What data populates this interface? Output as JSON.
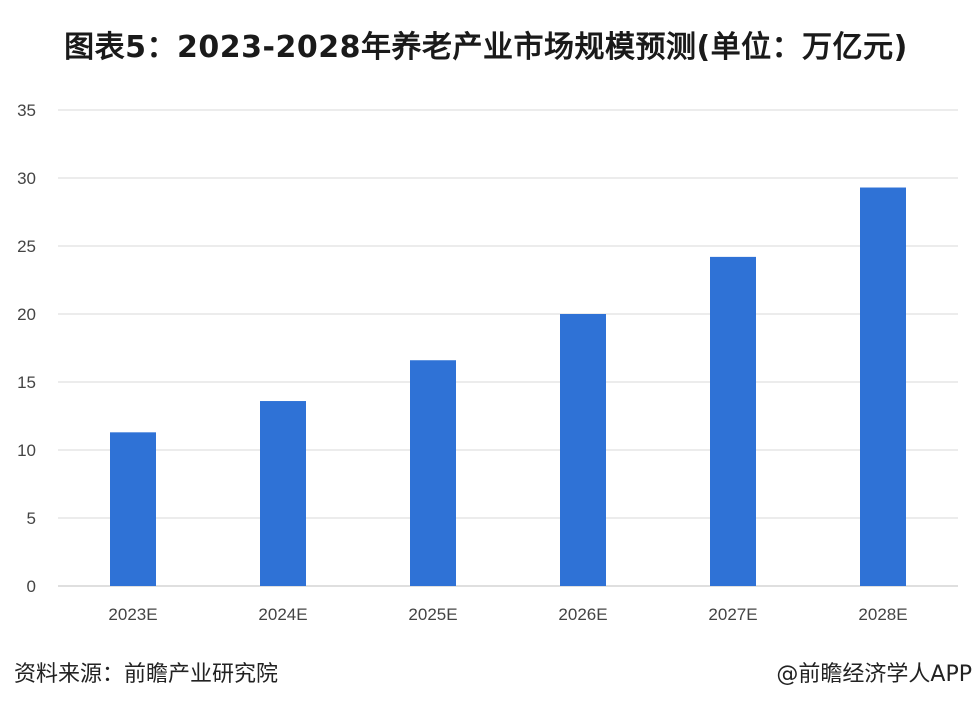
{
  "chart_data": {
    "type": "bar",
    "title": "图表5：2023-2028年养老产业市场规模预测(单位：万亿元)",
    "categories": [
      "2023E",
      "2024E",
      "2025E",
      "2026E",
      "2027E",
      "2028E"
    ],
    "series": [
      {
        "values": [
          11.3,
          13.6,
          16.6,
          20.0,
          24.2,
          29.3
        ]
      }
    ],
    "ylim": [
      0,
      35
    ],
    "yticks": [
      0,
      5,
      10,
      15,
      20,
      25,
      30,
      35
    ],
    "xlabel": "",
    "ylabel": "",
    "grid": true,
    "bar_color": "#2f72d6"
  },
  "footer": {
    "source": "资料来源：前瞻产业研究院",
    "credit": "@前瞻经济学人APP"
  }
}
